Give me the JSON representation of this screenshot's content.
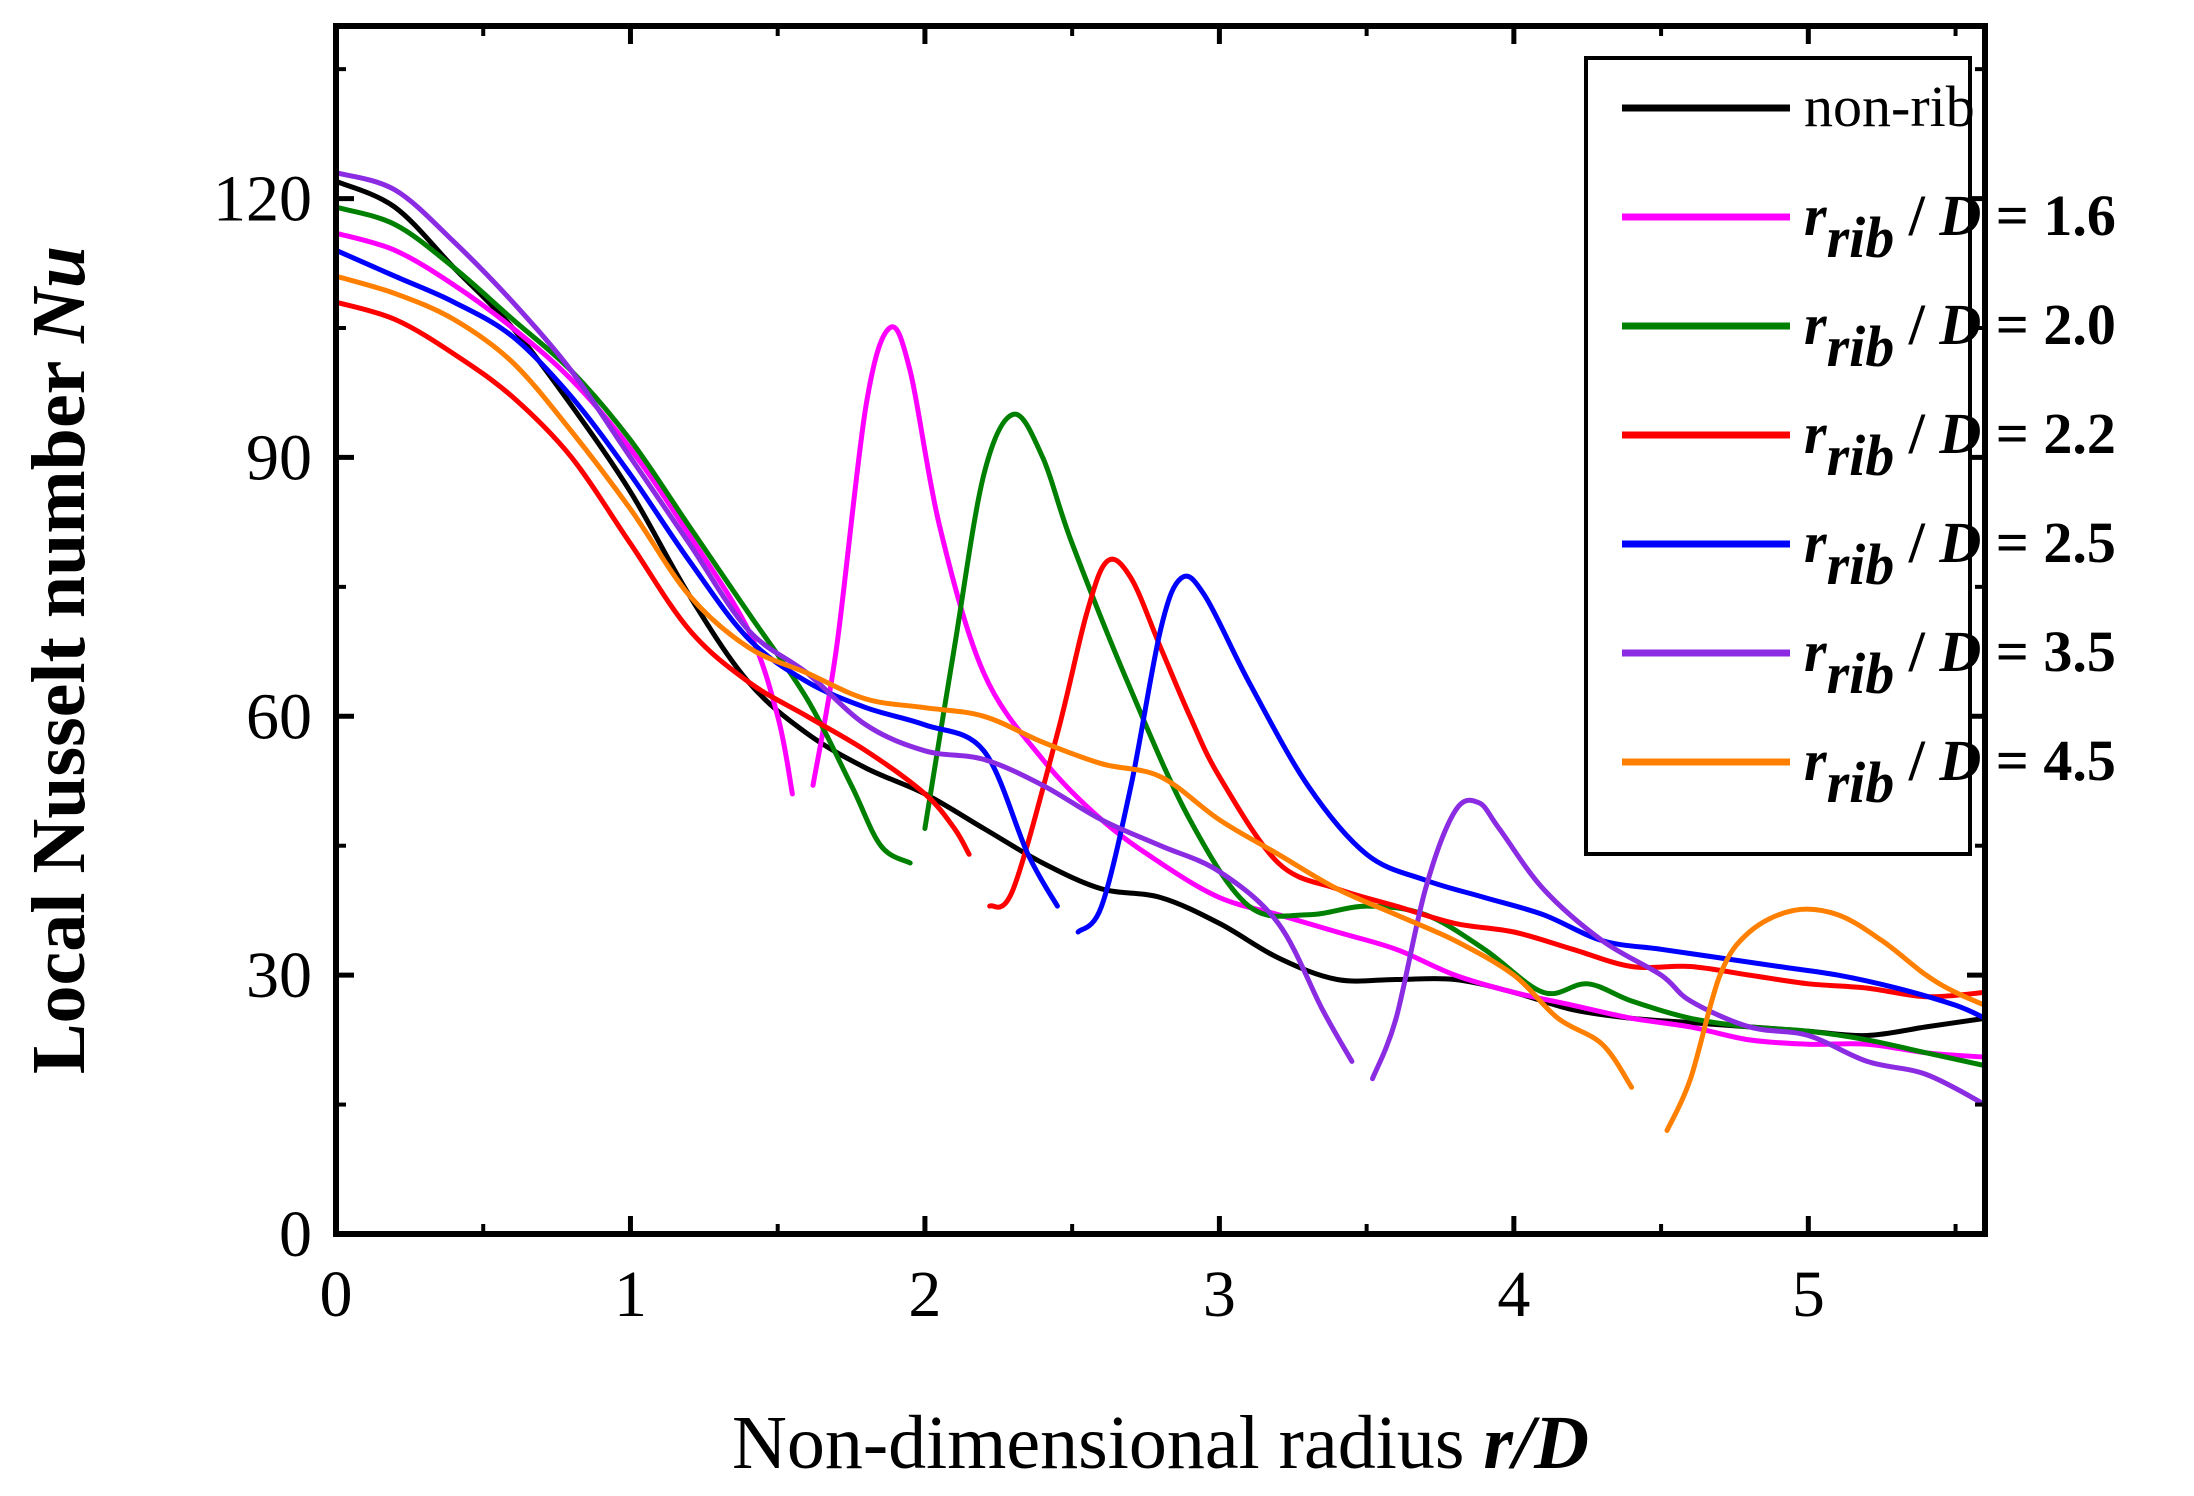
{
  "chart_data": {
    "type": "line",
    "title": "",
    "xlabel": "Non-dimensional radius ",
    "xlabel_var": "r/D",
    "ylabel": "Local Nusselt number ",
    "ylabel_var": "Nu",
    "xlim": [
      0,
      5.6
    ],
    "ylim": [
      0,
      140
    ],
    "x_ticks": [
      0,
      1,
      2,
      3,
      4,
      5
    ],
    "x_tick_labels": [
      "0",
      "1",
      "2",
      "3",
      "4",
      "5"
    ],
    "y_ticks": [
      0,
      30,
      60,
      90,
      120
    ],
    "y_tick_labels": [
      "0",
      "30",
      "60",
      "90",
      "120"
    ],
    "legend_position": "top-right",
    "series": [
      {
        "name": "non-rib",
        "legend": {
          "plain": "non-rib"
        },
        "color": "#000000",
        "segments": [
          [
            [
              0,
              122
            ],
            [
              0.2,
              119
            ],
            [
              0.4,
              112
            ],
            [
              0.6,
              105
            ],
            [
              0.8,
              96
            ],
            [
              1.0,
              86
            ],
            [
              1.2,
              74
            ],
            [
              1.4,
              64
            ],
            [
              1.6,
              58
            ],
            [
              1.8,
              54
            ],
            [
              2.0,
              51
            ],
            [
              2.2,
              47
            ],
            [
              2.4,
              43
            ],
            [
              2.6,
              40
            ],
            [
              2.8,
              39
            ],
            [
              3.0,
              36
            ],
            [
              3.2,
              32
            ],
            [
              3.4,
              29.5
            ],
            [
              3.6,
              29.5
            ],
            [
              3.8,
              29.5
            ],
            [
              4.0,
              28
            ],
            [
              4.2,
              26
            ],
            [
              4.4,
              25
            ],
            [
              4.6,
              24.5
            ],
            [
              4.8,
              24
            ],
            [
              5.0,
              23.5
            ],
            [
              5.2,
              23
            ],
            [
              5.4,
              24
            ],
            [
              5.6,
              25
            ]
          ]
        ]
      },
      {
        "name": "r_rib / D = 1.6",
        "legend": {
          "var": "r",
          "sub": "rib",
          "rest": " / ",
          "var2": "D",
          "value": " = 1.6"
        },
        "color": "#ff00ff",
        "segments": [
          [
            [
              0,
              116
            ],
            [
              0.2,
              114
            ],
            [
              0.4,
              110
            ],
            [
              0.6,
              105
            ],
            [
              0.8,
              99
            ],
            [
              1.0,
              91
            ],
            [
              1.2,
              81
            ],
            [
              1.4,
              70
            ],
            [
              1.5,
              60
            ],
            [
              1.55,
              51
            ]
          ],
          [
            [
              1.62,
              52
            ],
            [
              1.7,
              68
            ],
            [
              1.8,
              96
            ],
            [
              1.88,
              105
            ],
            [
              1.95,
              100
            ],
            [
              2.05,
              82
            ],
            [
              2.2,
              65
            ],
            [
              2.4,
              55
            ],
            [
              2.6,
              48
            ],
            [
              2.8,
              43
            ],
            [
              3.0,
              39
            ],
            [
              3.2,
              37
            ],
            [
              3.4,
              35
            ],
            [
              3.6,
              33
            ],
            [
              3.8,
              30
            ],
            [
              4.0,
              28
            ],
            [
              4.2,
              26.5
            ],
            [
              4.4,
              25
            ],
            [
              4.6,
              24
            ],
            [
              4.8,
              22.5
            ],
            [
              5.0,
              22
            ],
            [
              5.2,
              22
            ],
            [
              5.4,
              21
            ],
            [
              5.6,
              20.5
            ]
          ]
        ]
      },
      {
        "name": "r_rib / D = 2.0",
        "legend": {
          "var": "r",
          "sub": "rib",
          "rest": " / ",
          "var2": "D",
          "value": " = 2.0"
        },
        "color": "#008000",
        "segments": [
          [
            [
              0,
              119
            ],
            [
              0.2,
              117
            ],
            [
              0.4,
              112
            ],
            [
              0.6,
              106
            ],
            [
              0.8,
              100
            ],
            [
              1.0,
              92
            ],
            [
              1.2,
              82
            ],
            [
              1.4,
              72
            ],
            [
              1.6,
              62
            ],
            [
              1.75,
              52
            ],
            [
              1.85,
              45
            ],
            [
              1.95,
              43
            ]
          ],
          [
            [
              2.0,
              47
            ],
            [
              2.1,
              68
            ],
            [
              2.2,
              88
            ],
            [
              2.3,
              95
            ],
            [
              2.4,
              90
            ],
            [
              2.5,
              80
            ],
            [
              2.7,
              63
            ],
            [
              2.9,
              48
            ],
            [
              3.1,
              38
            ],
            [
              3.3,
              37
            ],
            [
              3.5,
              38
            ],
            [
              3.7,
              37
            ],
            [
              3.9,
              33
            ],
            [
              4.1,
              28
            ],
            [
              4.25,
              29
            ],
            [
              4.4,
              27
            ],
            [
              4.6,
              25
            ],
            [
              4.8,
              24
            ],
            [
              5.0,
              23.5
            ],
            [
              5.2,
              22.5
            ],
            [
              5.4,
              21
            ],
            [
              5.6,
              19.5
            ]
          ]
        ]
      },
      {
        "name": "r_rib / D = 2.2",
        "legend": {
          "var": "r",
          "sub": "rib",
          "rest": " / ",
          "var2": "D",
          "value": " = 2.2"
        },
        "color": "#ff0000",
        "segments": [
          [
            [
              0,
              108
            ],
            [
              0.2,
              106
            ],
            [
              0.4,
              102
            ],
            [
              0.6,
              97
            ],
            [
              0.8,
              90
            ],
            [
              1.0,
              80
            ],
            [
              1.2,
              70
            ],
            [
              1.4,
              64
            ],
            [
              1.6,
              60
            ],
            [
              1.8,
              56
            ],
            [
              2.0,
              51
            ],
            [
              2.1,
              47
            ],
            [
              2.15,
              44
            ]
          ],
          [
            [
              2.22,
              38
            ],
            [
              2.3,
              40
            ],
            [
              2.45,
              58
            ],
            [
              2.55,
              72
            ],
            [
              2.62,
              78
            ],
            [
              2.7,
              76
            ],
            [
              2.8,
              68
            ],
            [
              2.9,
              60
            ],
            [
              3.0,
              53
            ],
            [
              3.2,
              43
            ],
            [
              3.4,
              40
            ],
            [
              3.6,
              38
            ],
            [
              3.8,
              36
            ],
            [
              4.0,
              35
            ],
            [
              4.2,
              33
            ],
            [
              4.4,
              31
            ],
            [
              4.6,
              31
            ],
            [
              4.8,
              30
            ],
            [
              5.0,
              29
            ],
            [
              5.2,
              28.5
            ],
            [
              5.4,
              27.5
            ],
            [
              5.6,
              28
            ]
          ]
        ]
      },
      {
        "name": "r_rib / D = 2.5",
        "legend": {
          "var": "r",
          "sub": "rib",
          "rest": " / ",
          "var2": "D",
          "value": " = 2.5"
        },
        "color": "#0000ff",
        "segments": [
          [
            [
              0,
              114
            ],
            [
              0.2,
              111
            ],
            [
              0.4,
              108
            ],
            [
              0.6,
              104
            ],
            [
              0.8,
              97
            ],
            [
              1.0,
              88
            ],
            [
              1.2,
              78
            ],
            [
              1.4,
              69
            ],
            [
              1.6,
              64
            ],
            [
              1.8,
              61
            ],
            [
              2.0,
              59
            ],
            [
              2.2,
              56
            ],
            [
              2.35,
              44
            ],
            [
              2.45,
              38
            ]
          ],
          [
            [
              2.52,
              35
            ],
            [
              2.6,
              38
            ],
            [
              2.7,
              52
            ],
            [
              2.8,
              70
            ],
            [
              2.87,
              76
            ],
            [
              2.95,
              74
            ],
            [
              3.1,
              64
            ],
            [
              3.3,
              52
            ],
            [
              3.5,
              44
            ],
            [
              3.7,
              41
            ],
            [
              3.9,
              39
            ],
            [
              4.1,
              37
            ],
            [
              4.3,
              34
            ],
            [
              4.5,
              33
            ],
            [
              4.7,
              32
            ],
            [
              4.9,
              31
            ],
            [
              5.1,
              30
            ],
            [
              5.3,
              28.5
            ],
            [
              5.5,
              26.5
            ],
            [
              5.6,
              25
            ]
          ]
        ]
      },
      {
        "name": "r_rib / D = 3.5",
        "legend": {
          "var": "r",
          "sub": "rib",
          "rest": " / ",
          "var2": "D",
          "value": " = 3.5"
        },
        "color": "#8b2be2",
        "segments": [
          [
            [
              0,
              123
            ],
            [
              0.2,
              121
            ],
            [
              0.4,
              115
            ],
            [
              0.6,
              108
            ],
            [
              0.8,
              100
            ],
            [
              1.0,
              90
            ],
            [
              1.2,
              80
            ],
            [
              1.4,
              70
            ],
            [
              1.6,
              65
            ],
            [
              1.8,
              59
            ],
            [
              2.0,
              56
            ],
            [
              2.2,
              55
            ],
            [
              2.4,
              52
            ],
            [
              2.6,
              48
            ],
            [
              2.8,
              45
            ],
            [
              3.0,
              42
            ],
            [
              3.2,
              36
            ],
            [
              3.35,
              26
            ],
            [
              3.45,
              20
            ]
          ],
          [
            [
              3.52,
              18
            ],
            [
              3.6,
              25
            ],
            [
              3.7,
              40
            ],
            [
              3.8,
              49
            ],
            [
              3.88,
              50
            ],
            [
              3.95,
              47
            ],
            [
              4.1,
              40
            ],
            [
              4.3,
              34
            ],
            [
              4.5,
              30
            ],
            [
              4.6,
              27
            ],
            [
              4.8,
              24
            ],
            [
              5.0,
              23
            ],
            [
              5.2,
              20
            ],
            [
              5.4,
              18.5
            ],
            [
              5.6,
              15
            ]
          ]
        ]
      },
      {
        "name": "r_rib / D = 4.5",
        "legend": {
          "var": "r",
          "sub": "rib",
          "rest": " / ",
          "var2": "D",
          "value": " = 4.5"
        },
        "color": "#ff8000",
        "segments": [
          [
            [
              0,
              111
            ],
            [
              0.2,
              109
            ],
            [
              0.4,
              106
            ],
            [
              0.6,
              101
            ],
            [
              0.8,
              93
            ],
            [
              1.0,
              84
            ],
            [
              1.2,
              74
            ],
            [
              1.4,
              68
            ],
            [
              1.6,
              65
            ],
            [
              1.8,
              62
            ],
            [
              2.0,
              61
            ],
            [
              2.2,
              60
            ],
            [
              2.4,
              57
            ],
            [
              2.6,
              54.5
            ],
            [
              2.8,
              53
            ],
            [
              3.0,
              48
            ],
            [
              3.2,
              44
            ],
            [
              3.4,
              40
            ],
            [
              3.6,
              37
            ],
            [
              3.8,
              34
            ],
            [
              4.0,
              30
            ],
            [
              4.15,
              25
            ],
            [
              4.3,
              22
            ],
            [
              4.4,
              17
            ]
          ],
          [
            [
              4.52,
              12
            ],
            [
              4.6,
              18
            ],
            [
              4.7,
              30
            ],
            [
              4.8,
              35
            ],
            [
              4.95,
              37.5
            ],
            [
              5.1,
              37
            ],
            [
              5.25,
              34
            ],
            [
              5.4,
              30
            ],
            [
              5.5,
              28
            ],
            [
              5.6,
              26.5
            ]
          ]
        ]
      }
    ]
  }
}
